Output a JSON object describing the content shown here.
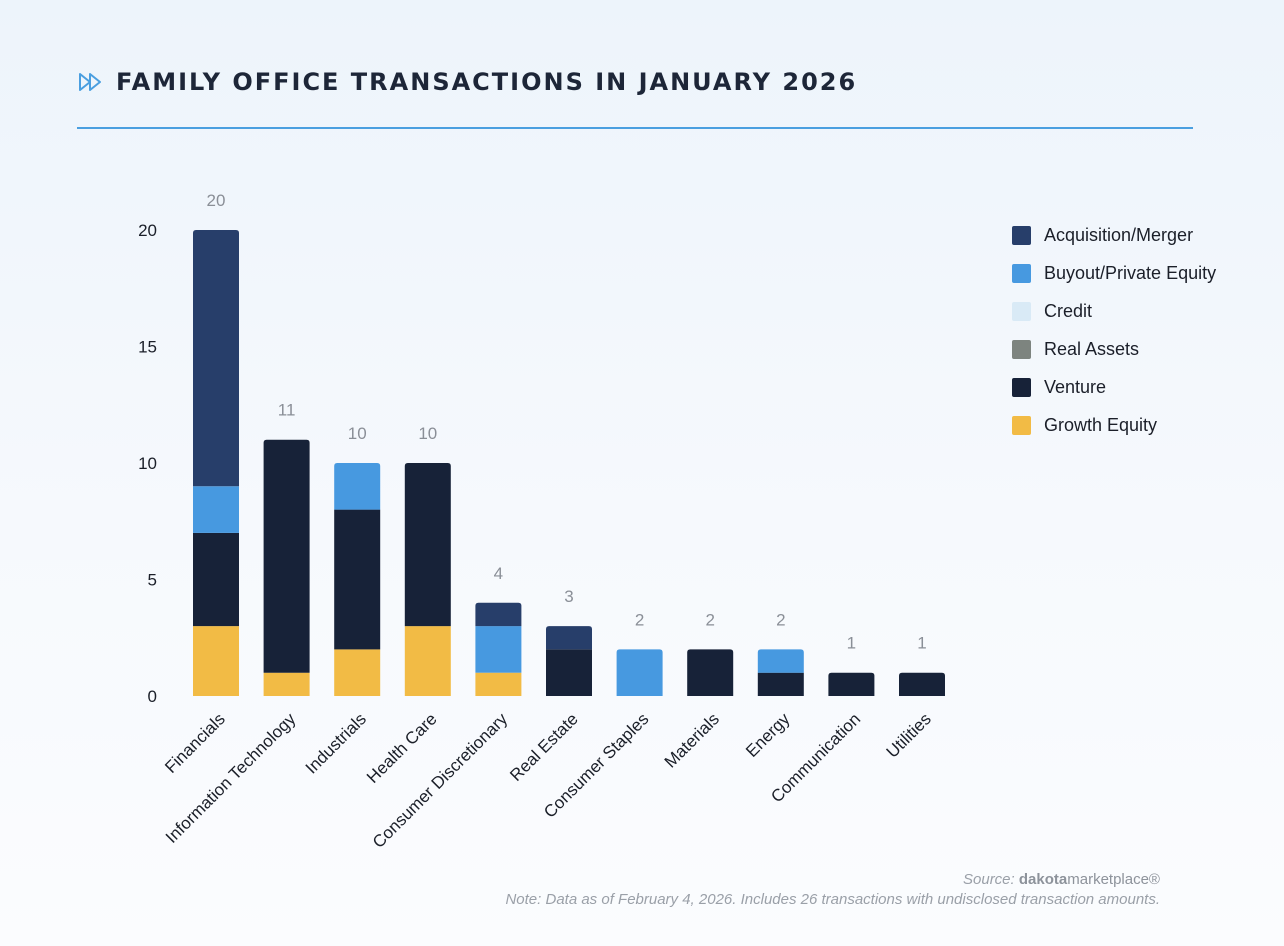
{
  "header": {
    "title": "FAMILY OFFICE TRANSACTIONS IN JANUARY 2026"
  },
  "chart_data": {
    "type": "bar",
    "stacked": true,
    "title": "FAMILY OFFICE TRANSACTIONS IN JANUARY 2026",
    "xlabel": "",
    "ylabel": "",
    "ylim": [
      0,
      20
    ],
    "yticks": [
      0,
      5,
      10,
      15,
      20
    ],
    "grid": false,
    "legend_position": "top-right",
    "categories": [
      "Financials",
      "Information Technology",
      "Industrials",
      "Health Care",
      "Consumer Discretionary",
      "Real Estate",
      "Consumer Staples",
      "Materials",
      "Energy",
      "Communication",
      "Utilities"
    ],
    "totals": [
      20,
      11,
      10,
      10,
      4,
      3,
      2,
      2,
      2,
      1,
      1
    ],
    "series": [
      {
        "name": "Growth Equity",
        "color": "#f2bb45",
        "values": [
          3,
          1,
          2,
          3,
          1,
          0,
          0,
          0,
          0,
          0,
          0
        ]
      },
      {
        "name": "Venture",
        "color": "#172238",
        "values": [
          4,
          10,
          6,
          7,
          0,
          2,
          0,
          2,
          1,
          1,
          1
        ]
      },
      {
        "name": "Real Assets",
        "color": "#7d847f",
        "values": [
          0,
          0,
          0,
          0,
          0,
          0,
          0,
          0,
          0,
          0,
          0
        ]
      },
      {
        "name": "Credit",
        "color": "#d9eaf6",
        "values": [
          0,
          0,
          0,
          0,
          0,
          0,
          0,
          0,
          0,
          0,
          0
        ]
      },
      {
        "name": "Buyout/Private Equity",
        "color": "#4799e0",
        "values": [
          2,
          0,
          2,
          0,
          2,
          0,
          2,
          0,
          1,
          0,
          0
        ]
      },
      {
        "name": "Acquisition/Merger",
        "color": "#273e6a",
        "values": [
          11,
          0,
          0,
          0,
          1,
          1,
          0,
          0,
          0,
          0,
          0
        ]
      }
    ],
    "legend": [
      "Acquisition/Merger",
      "Buyout/Private Equity",
      "Credit",
      "Real Assets",
      "Venture",
      "Growth Equity"
    ]
  },
  "footer": {
    "source_prefix": "Source:",
    "source_brand": "dakota",
    "source_brand_suffix": "marketplace®",
    "note": "Note: Data as of February 4, 2026. Includes 26 transactions with undisclosed transaction amounts."
  }
}
